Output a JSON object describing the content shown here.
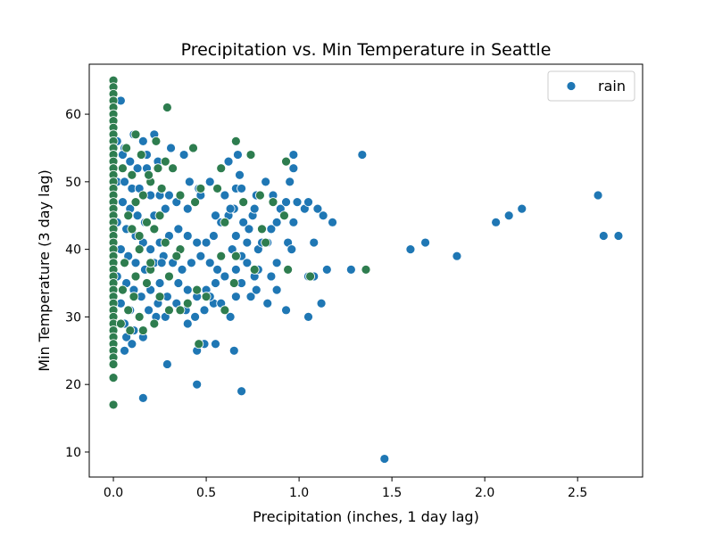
{
  "chart_data": {
    "type": "scatter",
    "title": "Precipitation vs. Min Temperature in Seattle",
    "xlabel": "Precipitation (inches, 1 day lag)",
    "ylabel": "Min Temperature (3 day lag)",
    "xlim": [
      -0.13,
      2.85
    ],
    "ylim": [
      6.3,
      67.4
    ],
    "xticks": [
      0.0,
      0.5,
      1.0,
      1.5,
      2.0,
      2.5
    ],
    "xtick_labels": [
      "0.0",
      "0.5",
      "1.0",
      "1.5",
      "2.0",
      "2.5"
    ],
    "yticks": [
      10,
      20,
      30,
      40,
      50,
      60
    ],
    "ytick_labels": [
      "10",
      "20",
      "30",
      "40",
      "50",
      "60"
    ],
    "grid": false,
    "legend": {
      "position": "top-right",
      "entries": [
        {
          "label": "rain",
          "color": "#1f77b4"
        }
      ]
    },
    "series": [
      {
        "name": "rain",
        "color": "#1f77b4",
        "points": [
          [
            0.04,
            62
          ],
          [
            0.02,
            56
          ],
          [
            0.06,
            55
          ],
          [
            0.11,
            57
          ],
          [
            0.16,
            56
          ],
          [
            0.22,
            57
          ],
          [
            0.18,
            54
          ],
          [
            0.05,
            54
          ],
          [
            0.09,
            53
          ],
          [
            0.13,
            52
          ],
          [
            0.18,
            52
          ],
          [
            0.24,
            53
          ],
          [
            0.02,
            50
          ],
          [
            0.06,
            50
          ],
          [
            0.1,
            49
          ],
          [
            0.14,
            49
          ],
          [
            0.2,
            48
          ],
          [
            0.25,
            48
          ],
          [
            0.3,
            48
          ],
          [
            0.05,
            47
          ],
          [
            0.09,
            46
          ],
          [
            0.13,
            45
          ],
          [
            0.17,
            44
          ],
          [
            0.22,
            45
          ],
          [
            0.28,
            46
          ],
          [
            0.34,
            47
          ],
          [
            0.4,
            46
          ],
          [
            0.02,
            44
          ],
          [
            0.07,
            43
          ],
          [
            0.12,
            42
          ],
          [
            0.16,
            41
          ],
          [
            0.2,
            40
          ],
          [
            0.25,
            41
          ],
          [
            0.3,
            42
          ],
          [
            0.35,
            43
          ],
          [
            0.4,
            42
          ],
          [
            0.45,
            41
          ],
          [
            0.04,
            40
          ],
          [
            0.08,
            39
          ],
          [
            0.12,
            38
          ],
          [
            0.17,
            37
          ],
          [
            0.22,
            38
          ],
          [
            0.27,
            39
          ],
          [
            0.32,
            38
          ],
          [
            0.37,
            37
          ],
          [
            0.42,
            38
          ],
          [
            0.47,
            39
          ],
          [
            0.02,
            36
          ],
          [
            0.07,
            35
          ],
          [
            0.11,
            34
          ],
          [
            0.15,
            33
          ],
          [
            0.2,
            34
          ],
          [
            0.25,
            35
          ],
          [
            0.3,
            36
          ],
          [
            0.35,
            35
          ],
          [
            0.4,
            34
          ],
          [
            0.45,
            33
          ],
          [
            0.5,
            34
          ],
          [
            0.04,
            32
          ],
          [
            0.09,
            31
          ],
          [
            0.14,
            30
          ],
          [
            0.19,
            31
          ],
          [
            0.24,
            32
          ],
          [
            0.29,
            33
          ],
          [
            0.34,
            32
          ],
          [
            0.39,
            31
          ],
          [
            0.44,
            30
          ],
          [
            0.49,
            31
          ],
          [
            0.54,
            32
          ],
          [
            0.06,
            29
          ],
          [
            0.11,
            28
          ],
          [
            0.16,
            27
          ],
          [
            0.23,
            30
          ],
          [
            0.28,
            30
          ],
          [
            0.4,
            29
          ],
          [
            0.07,
            27
          ],
          [
            0.16,
            28
          ],
          [
            0.1,
            26
          ],
          [
            0.26,
            38
          ],
          [
            0.31,
            55
          ],
          [
            0.38,
            54
          ],
          [
            0.41,
            50
          ],
          [
            0.46,
            49
          ],
          [
            0.47,
            48
          ],
          [
            0.52,
            50
          ],
          [
            0.55,
            45
          ],
          [
            0.6,
            48
          ],
          [
            0.62,
            45
          ],
          [
            0.65,
            46
          ],
          [
            0.58,
            44
          ],
          [
            0.54,
            42
          ],
          [
            0.5,
            41
          ],
          [
            0.52,
            38
          ],
          [
            0.56,
            37
          ],
          [
            0.6,
            36
          ],
          [
            0.55,
            35
          ],
          [
            0.52,
            33
          ],
          [
            0.58,
            32
          ],
          [
            0.63,
            30
          ],
          [
            0.66,
            33
          ],
          [
            0.69,
            35
          ],
          [
            0.62,
            53
          ],
          [
            0.67,
            54
          ],
          [
            0.68,
            51
          ],
          [
            0.66,
            49
          ],
          [
            0.69,
            49
          ],
          [
            0.63,
            46
          ],
          [
            0.7,
            44
          ],
          [
            0.73,
            43
          ],
          [
            0.75,
            45
          ],
          [
            0.76,
            46
          ],
          [
            0.77,
            48
          ],
          [
            0.72,
            41
          ],
          [
            0.66,
            42
          ],
          [
            0.64,
            40
          ],
          [
            0.69,
            39
          ],
          [
            0.72,
            38
          ],
          [
            0.66,
            37
          ],
          [
            0.76,
            36
          ],
          [
            0.74,
            33
          ],
          [
            0.78,
            40
          ],
          [
            0.8,
            41
          ],
          [
            0.83,
            41
          ],
          [
            0.85,
            43
          ],
          [
            0.88,
            44
          ],
          [
            0.82,
            50
          ],
          [
            0.86,
            48
          ],
          [
            0.9,
            46
          ],
          [
            0.93,
            47
          ],
          [
            0.95,
            50
          ],
          [
            0.97,
            54
          ],
          [
            0.97,
            52
          ],
          [
            0.97,
            44
          ],
          [
            0.94,
            41
          ],
          [
            0.96,
            40
          ],
          [
            0.88,
            38
          ],
          [
            0.85,
            36
          ],
          [
            0.88,
            34
          ],
          [
            0.83,
            32
          ],
          [
            0.93,
            31
          ],
          [
            0.99,
            47
          ],
          [
            1.03,
            46
          ],
          [
            1.05,
            47
          ],
          [
            1.1,
            46
          ],
          [
            1.13,
            45
          ],
          [
            1.18,
            44
          ],
          [
            1.08,
            41
          ],
          [
            1.05,
            36
          ],
          [
            1.08,
            36
          ],
          [
            1.15,
            37
          ],
          [
            1.05,
            30
          ],
          [
            1.12,
            32
          ],
          [
            1.28,
            37
          ],
          [
            1.34,
            54
          ],
          [
            1.6,
            40
          ],
          [
            1.68,
            41
          ],
          [
            1.85,
            39
          ],
          [
            2.06,
            44
          ],
          [
            2.13,
            45
          ],
          [
            2.2,
            46
          ],
          [
            2.61,
            48
          ],
          [
            2.64,
            42
          ],
          [
            2.72,
            42
          ],
          [
            1.46,
            9
          ],
          [
            0.45,
            20
          ],
          [
            0.69,
            19
          ],
          [
            0.16,
            18
          ],
          [
            0.29,
            23
          ],
          [
            0.06,
            25
          ],
          [
            0.45,
            25
          ],
          [
            0.65,
            25
          ],
          [
            0.55,
            26
          ],
          [
            0.49,
            26
          ],
          [
            0.77,
            37
          ],
          [
            0.78,
            37
          ],
          [
            0.77,
            34
          ]
        ]
      },
      {
        "name": "",
        "color": "#2e7d4f",
        "points": [
          [
            0,
            65
          ],
          [
            0,
            64
          ],
          [
            0,
            63
          ],
          [
            0,
            62
          ],
          [
            0,
            61
          ],
          [
            0,
            60
          ],
          [
            0,
            59
          ],
          [
            0,
            58
          ],
          [
            0,
            57
          ],
          [
            0,
            56
          ],
          [
            0,
            55
          ],
          [
            0,
            54
          ],
          [
            0,
            53
          ],
          [
            0,
            52
          ],
          [
            0,
            51
          ],
          [
            0,
            50
          ],
          [
            0,
            49
          ],
          [
            0,
            48
          ],
          [
            0,
            47
          ],
          [
            0,
            46
          ],
          [
            0,
            45
          ],
          [
            0,
            44
          ],
          [
            0,
            43
          ],
          [
            0,
            42
          ],
          [
            0,
            41
          ],
          [
            0,
            40
          ],
          [
            0,
            39
          ],
          [
            0,
            38
          ],
          [
            0,
            37
          ],
          [
            0,
            36
          ],
          [
            0,
            35
          ],
          [
            0,
            34
          ],
          [
            0,
            33
          ],
          [
            0,
            32
          ],
          [
            0,
            31
          ],
          [
            0,
            30
          ],
          [
            0,
            29
          ],
          [
            0,
            28
          ],
          [
            0,
            27
          ],
          [
            0,
            26
          ],
          [
            0,
            25
          ],
          [
            0,
            24
          ],
          [
            0,
            23
          ],
          [
            0,
            21
          ],
          [
            0,
            17
          ],
          [
            0.29,
            61
          ],
          [
            0.12,
            57
          ],
          [
            0.23,
            56
          ],
          [
            0.15,
            54
          ],
          [
            0.07,
            55
          ],
          [
            0.05,
            52
          ],
          [
            0.1,
            51
          ],
          [
            0.2,
            50
          ],
          [
            0.16,
            48
          ],
          [
            0.12,
            47
          ],
          [
            0.08,
            45
          ],
          [
            0.18,
            44
          ],
          [
            0.1,
            43
          ],
          [
            0.22,
            43
          ],
          [
            0.28,
            41
          ],
          [
            0.14,
            40
          ],
          [
            0.06,
            38
          ],
          [
            0.2,
            37
          ],
          [
            0.3,
            36
          ],
          [
            0.12,
            36
          ],
          [
            0.18,
            35
          ],
          [
            0.25,
            33
          ],
          [
            0.08,
            31
          ],
          [
            0.14,
            30
          ],
          [
            0.22,
            29
          ],
          [
            0.04,
            29
          ],
          [
            0.09,
            28
          ],
          [
            0.16,
            28
          ],
          [
            0.3,
            31
          ],
          [
            0.36,
            31
          ],
          [
            0.4,
            32
          ],
          [
            0.45,
            34
          ],
          [
            0.5,
            33
          ],
          [
            0.43,
            55
          ],
          [
            0.36,
            40
          ],
          [
            0.44,
            47
          ],
          [
            0.58,
            52
          ],
          [
            0.7,
            47
          ],
          [
            0.79,
            48
          ],
          [
            0.74,
            54
          ],
          [
            0.93,
            53
          ],
          [
            0.92,
            45
          ],
          [
            0.86,
            47
          ],
          [
            0.8,
            43
          ],
          [
            0.76,
            37
          ],
          [
            0.65,
            35
          ],
          [
            0.58,
            39
          ],
          [
            0.6,
            31
          ],
          [
            0.46,
            26
          ],
          [
            0.47,
            49
          ],
          [
            0.66,
            56
          ],
          [
            0.36,
            48
          ],
          [
            0.26,
            49
          ],
          [
            0.14,
            42
          ],
          [
            0.34,
            39
          ],
          [
            0.05,
            34
          ],
          [
            1.06,
            36
          ],
          [
            1.36,
            37
          ],
          [
            0.94,
            37
          ],
          [
            0.82,
            41
          ],
          [
            0.6,
            44
          ],
          [
            0.56,
            49
          ],
          [
            0.66,
            39
          ],
          [
            0.25,
            45
          ],
          [
            0.28,
            53
          ],
          [
            0.24,
            52
          ],
          [
            0.32,
            52
          ],
          [
            0.19,
            51
          ],
          [
            0.2,
            38
          ],
          [
            0.11,
            33
          ]
        ]
      }
    ]
  }
}
